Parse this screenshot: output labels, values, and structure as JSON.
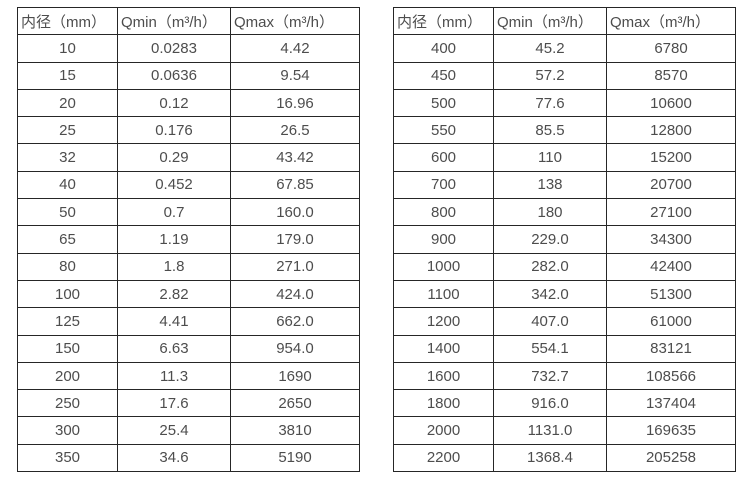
{
  "colors": {
    "background": "#ffffff",
    "table_border": "#262626",
    "cell_text": "#4d4d4d"
  },
  "chart_data": [
    {
      "type": "table",
      "title": "",
      "columns": [
        "内径（mm）",
        "Qmin（m³/h）",
        "Qmax（m³/h）"
      ],
      "rows": [
        [
          "10",
          "0.0283",
          "4.42"
        ],
        [
          "15",
          "0.0636",
          "9.54"
        ],
        [
          "20",
          "0.12",
          "16.96"
        ],
        [
          "25",
          "0.176",
          "26.5"
        ],
        [
          "32",
          "0.29",
          "43.42"
        ],
        [
          "40",
          "0.452",
          "67.85"
        ],
        [
          "50",
          "0.7",
          "160.0"
        ],
        [
          "65",
          "1.19",
          "179.0"
        ],
        [
          "80",
          "1.8",
          "271.0"
        ],
        [
          "100",
          "2.82",
          "424.0"
        ],
        [
          "125",
          "4.41",
          "662.0"
        ],
        [
          "150",
          "6.63",
          "954.0"
        ],
        [
          "200",
          "11.3",
          "1690"
        ],
        [
          "250",
          "17.6",
          "2650"
        ],
        [
          "300",
          "25.4",
          "3810"
        ],
        [
          "350",
          "34.6",
          "5190"
        ]
      ]
    },
    {
      "type": "table",
      "title": "",
      "columns": [
        "内径（mm）",
        "Qmin（m³/h）",
        "Qmax（m³/h）"
      ],
      "rows": [
        [
          "400",
          "45.2",
          "6780"
        ],
        [
          "450",
          "57.2",
          "8570"
        ],
        [
          "500",
          "77.6",
          "10600"
        ],
        [
          "550",
          "85.5",
          "12800"
        ],
        [
          "600",
          "110",
          "15200"
        ],
        [
          "700",
          "138",
          "20700"
        ],
        [
          "800",
          "180",
          "27100"
        ],
        [
          "900",
          "229.0",
          "34300"
        ],
        [
          "1000",
          "282.0",
          "42400"
        ],
        [
          "1100",
          "342.0",
          "51300"
        ],
        [
          "1200",
          "407.0",
          "61000"
        ],
        [
          "1400",
          "554.1",
          "83121"
        ],
        [
          "1600",
          "732.7",
          "108566"
        ],
        [
          "1800",
          "916.0",
          "137404"
        ],
        [
          "2000",
          "1131.0",
          "169635"
        ],
        [
          "2200",
          "1368.4",
          "205258"
        ]
      ]
    }
  ]
}
